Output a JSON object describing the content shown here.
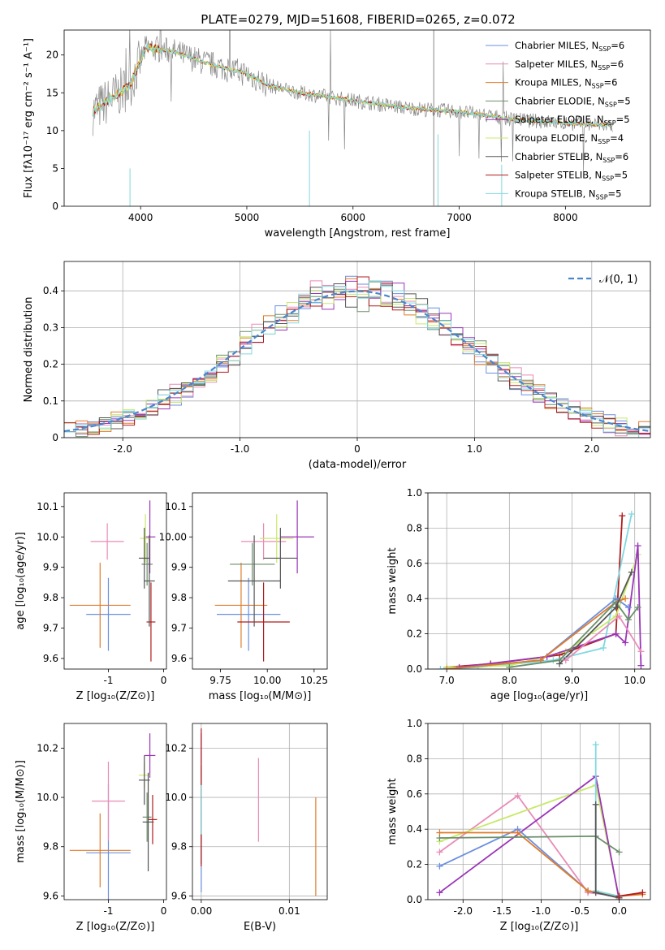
{
  "title": "PLATE=0279, MJD=51608, FIBERID=0265, z=0.072",
  "models": [
    {
      "name": "Chabrier MILES",
      "n": "6",
      "color": "#6b8fe0"
    },
    {
      "name": "Salpeter MILES",
      "n": "6",
      "color": "#e88bb6"
    },
    {
      "name": "Kroupa MILES",
      "n": "6",
      "color": "#e07b2a"
    },
    {
      "name": "Chabrier ELODIE",
      "n": "5",
      "color": "#6b8f6b"
    },
    {
      "name": "Salpeter ELODIE",
      "n": "5",
      "color": "#9a35b8"
    },
    {
      "name": "Kroupa ELODIE",
      "n": "4",
      "color": "#c8e96b"
    },
    {
      "name": "Chabrier STELIB",
      "n": "6",
      "color": "#555555"
    },
    {
      "name": "Salpeter STELIB",
      "n": "5",
      "color": "#b01c1c"
    },
    {
      "name": "Kroupa STELIB",
      "n": "5",
      "color": "#80d8e0"
    }
  ],
  "chart_data": [
    {
      "id": "spectrum",
      "type": "line",
      "xlabel": "wavelength [Angstrom, rest frame]",
      "ylabel": "Flux [fλ10⁻¹⁷ erg cm⁻² s⁻¹ A⁻¹]",
      "xlim": [
        3280,
        8800
      ],
      "ylim": [
        0,
        23.3
      ],
      "xticks": [
        4000,
        5000,
        6000,
        7000,
        8000
      ],
      "yticks": [
        0,
        5,
        10,
        15,
        20
      ],
      "continuum": {
        "x": [
          3550,
          3700,
          3900,
          4050,
          4300,
          4600,
          5000,
          5200,
          5500,
          6000,
          6500,
          7000,
          7500,
          8000,
          8400
        ],
        "y": [
          12.5,
          14,
          16,
          21,
          20.5,
          19,
          17.5,
          16,
          15,
          14,
          13,
          12.5,
          11.5,
          11,
          10.7
        ]
      }
    },
    {
      "id": "residuals",
      "type": "line",
      "xlabel": "(data-model)/error",
      "ylabel": "Normed distribution",
      "xlim": [
        -2.5,
        2.5
      ],
      "ylim": [
        0,
        0.48
      ],
      "xticks": [
        -2,
        -1,
        0,
        1,
        2
      ],
      "yticks": [
        0.0,
        0.1,
        0.2,
        0.3,
        0.4
      ],
      "legend": "𝒩(0, 1)"
    },
    {
      "id": "age-Z",
      "type": "scatter",
      "xlabel": "Z [log₁₀(Z/Z⊙)]",
      "ylabel": "age  [log₁₀(age/yr)]",
      "xlim": [
        -1.8,
        0.05
      ],
      "ylim": [
        9.565,
        10.145
      ],
      "xticks": [
        -1,
        0
      ],
      "yticks": [
        9.6,
        9.7,
        9.8,
        9.9,
        10.0,
        10.1
      ],
      "points": [
        {
          "x": -1.0,
          "y": 9.745,
          "xerr": 0.4,
          "yerr": 0.12,
          "c": 0
        },
        {
          "x": -1.02,
          "y": 9.985,
          "xerr": 0.3,
          "yerr": 0.06,
          "c": 1
        },
        {
          "x": -1.15,
          "y": 9.775,
          "xerr": 0.55,
          "yerr": 0.14,
          "c": 2
        },
        {
          "x": -0.3,
          "y": 9.91,
          "xerr": 0.1,
          "yerr": 0.07,
          "c": 3
        },
        {
          "x": -0.25,
          "y": 10.0,
          "xerr": 0.1,
          "yerr": 0.12,
          "c": 4
        },
        {
          "x": -0.33,
          "y": 9.995,
          "xerr": 0.1,
          "yerr": 0.08,
          "c": 5
        },
        {
          "x": -0.35,
          "y": 9.93,
          "xerr": 0.1,
          "yerr": 0.1,
          "c": 6
        },
        {
          "x": -0.23,
          "y": 9.72,
          "xerr": 0.08,
          "yerr": 0.13,
          "c": 7
        },
        {
          "x": -0.26,
          "y": 9.855,
          "xerr": 0.1,
          "yerr": 0.15,
          "c": 6
        }
      ]
    },
    {
      "id": "age-mass",
      "type": "scatter",
      "xlabel": "mass [log₁₀(M/M⊙)]",
      "ylabel": "",
      "xlim": [
        9.6,
        10.32
      ],
      "ylim": [
        9.565,
        10.145
      ],
      "xticks": [
        9.75,
        10.0,
        10.25
      ],
      "yticks": [
        9.6,
        9.7,
        9.8,
        9.9,
        10.0,
        10.1
      ],
      "points": [
        {
          "x": 9.9,
          "y": 9.745,
          "xerr": 0.17,
          "yerr": 0.12,
          "c": 0
        },
        {
          "x": 9.98,
          "y": 9.985,
          "xerr": 0.12,
          "yerr": 0.06,
          "c": 1
        },
        {
          "x": 9.86,
          "y": 9.775,
          "xerr": 0.14,
          "yerr": 0.14,
          "c": 2
        },
        {
          "x": 9.92,
          "y": 9.91,
          "xerr": 0.12,
          "yerr": 0.07,
          "c": 3
        },
        {
          "x": 10.16,
          "y": 10.0,
          "xerr": 0.09,
          "yerr": 0.12,
          "c": 4
        },
        {
          "x": 10.05,
          "y": 9.995,
          "xerr": 0.09,
          "yerr": 0.08,
          "c": 5
        },
        {
          "x": 10.07,
          "y": 9.93,
          "xerr": 0.09,
          "yerr": 0.1,
          "c": 6
        },
        {
          "x": 9.98,
          "y": 9.72,
          "xerr": 0.14,
          "yerr": 0.13,
          "c": 7
        },
        {
          "x": 9.93,
          "y": 9.855,
          "xerr": 0.14,
          "yerr": 0.15,
          "c": 6
        }
      ]
    },
    {
      "id": "weight-age",
      "type": "line",
      "xlabel": "age  [log₁₀(age/yr)]",
      "ylabel": "mass weight",
      "xlim": [
        6.7,
        10.25
      ],
      "ylim": [
        0,
        1.0
      ],
      "xticks": [
        7,
        8,
        9,
        10
      ],
      "yticks": [
        0.0,
        0.2,
        0.4,
        0.6,
        0.8,
        1.0
      ],
      "series": [
        {
          "c": 7,
          "x": [
            7.0,
            7.7,
            8.8,
            9.7,
            9.8
          ],
          "y": [
            0.01,
            0.03,
            0.08,
            0.2,
            0.87
          ]
        },
        {
          "c": 8,
          "x": [
            6.9,
            7.5,
            8.7,
            9.5,
            9.95
          ],
          "y": [
            0.0,
            0.01,
            0.05,
            0.12,
            0.88
          ]
        },
        {
          "c": 5,
          "x": [
            7.0,
            8.0,
            8.9,
            9.7,
            10.05
          ],
          "y": [
            0.01,
            0.02,
            0.1,
            0.3,
            0.65
          ]
        },
        {
          "c": 4,
          "x": [
            7.2,
            8.6,
            9.7,
            9.85,
            10.05,
            10.1
          ],
          "y": [
            0.01,
            0.07,
            0.2,
            0.15,
            0.7,
            0.02
          ]
        },
        {
          "c": 0,
          "x": [
            7.0,
            8.5,
            9.7,
            9.9
          ],
          "y": [
            0.0,
            0.05,
            0.4,
            0.35
          ]
        },
        {
          "c": 2,
          "x": [
            7.0,
            8.5,
            9.7,
            9.85
          ],
          "y": [
            0.0,
            0.05,
            0.38,
            0.4
          ]
        },
        {
          "c": 3,
          "x": [
            8.0,
            8.8,
            9.7,
            9.9,
            10.05
          ],
          "y": [
            0.01,
            0.05,
            0.38,
            0.28,
            0.35
          ]
        },
        {
          "c": 6,
          "x": [
            8.8,
            9.7,
            9.95
          ],
          "y": [
            0.03,
            0.35,
            0.55
          ]
        },
        {
          "c": 1,
          "x": [
            8.9,
            9.75,
            10.1
          ],
          "y": [
            0.05,
            0.3,
            0.1
          ]
        }
      ]
    },
    {
      "id": "mass-Z",
      "type": "scatter",
      "xlabel": "Z [log₁₀(Z/Z⊙)]",
      "ylabel": "mass [log₁₀(M/M⊙)]",
      "xlim": [
        -1.8,
        0.05
      ],
      "ylim": [
        9.585,
        10.3
      ],
      "xticks": [
        -1,
        0
      ],
      "yticks": [
        9.6,
        9.8,
        10.0,
        10.2
      ],
      "points": [
        {
          "x": -1.0,
          "y": 9.775,
          "xerr": 0.4,
          "yerr": 0.28,
          "c": 0
        },
        {
          "x": -1.0,
          "y": 9.985,
          "xerr": 0.3,
          "yerr": 0.16,
          "c": 1
        },
        {
          "x": -1.15,
          "y": 9.785,
          "xerr": 0.55,
          "yerr": 0.15,
          "c": 2
        },
        {
          "x": -0.3,
          "y": 9.92,
          "xerr": 0.08,
          "yerr": 0.1,
          "c": 3
        },
        {
          "x": -0.25,
          "y": 10.17,
          "xerr": 0.1,
          "yerr": 0.09,
          "c": 4
        },
        {
          "x": -0.35,
          "y": 10.09,
          "xerr": 0.1,
          "yerr": 0.05,
          "c": 5
        },
        {
          "x": -0.35,
          "y": 10.07,
          "xerr": 0.1,
          "yerr": 0.1,
          "c": 6
        },
        {
          "x": -0.2,
          "y": 9.91,
          "xerr": 0.08,
          "yerr": 0.1,
          "c": 7
        },
        {
          "x": -0.28,
          "y": 9.9,
          "xerr": 0.1,
          "yerr": 0.2,
          "c": 6
        }
      ]
    },
    {
      "id": "mass-EBV",
      "type": "scatter",
      "xlabel": "E(B-V)",
      "ylabel": "",
      "xlim": [
        -0.001,
        0.0143
      ],
      "ylim": [
        9.585,
        10.3
      ],
      "xticks": [
        0.0,
        0.01
      ],
      "yticks": [
        9.6,
        9.8,
        10.0,
        10.2
      ],
      "points": [
        {
          "x": 0.0,
          "y": 9.775,
          "xerr": 0,
          "yerr": 0.16,
          "c": 0
        },
        {
          "x": 0.0065,
          "y": 9.99,
          "xerr": 0,
          "yerr": 0.17,
          "c": 1
        },
        {
          "x": 0.013,
          "y": 9.8,
          "xerr": 0,
          "yerr": 0.2,
          "c": 2
        },
        {
          "x": 0.0,
          "y": 10.0,
          "xerr": 0,
          "yerr": 0.12,
          "c": 3
        },
        {
          "x": 0.0,
          "y": 10.17,
          "xerr": 0,
          "yerr": 0.09,
          "c": 4
        },
        {
          "x": 0.0,
          "y": 10.09,
          "xerr": 0,
          "yerr": 0.05,
          "c": 5
        },
        {
          "x": 0.0,
          "y": 9.93,
          "xerr": 0,
          "yerr": 0.2,
          "c": 6
        },
        {
          "x": 0.0,
          "y": 10.0,
          "xerr": 0,
          "yerr": 0.28,
          "c": 7
        },
        {
          "x": 0.0,
          "y": 9.95,
          "xerr": 0,
          "yerr": 0.1,
          "c": 8
        }
      ]
    },
    {
      "id": "weight-Z",
      "type": "line",
      "xlabel": "Z [log₁₀(Z/Z⊙)]",
      "ylabel": "mass weight",
      "xlim": [
        -2.45,
        0.4
      ],
      "ylim": [
        0,
        1.0
      ],
      "xticks": [
        -2.0,
        -1.5,
        -1.0,
        -0.5,
        0.0
      ],
      "yticks": [
        0.0,
        0.2,
        0.4,
        0.6,
        0.8,
        1.0
      ],
      "series": [
        {
          "c": 1,
          "x": [
            -2.3,
            -1.3,
            -0.4,
            0.0
          ],
          "y": [
            0.27,
            0.59,
            0.04,
            0.02
          ]
        },
        {
          "c": 5,
          "x": [
            -2.3,
            -0.3,
            0.0
          ],
          "y": [
            0.33,
            0.65,
            0.01
          ]
        },
        {
          "c": 4,
          "x": [
            -2.3,
            -0.3,
            0.0
          ],
          "y": [
            0.04,
            0.7,
            0.0
          ]
        },
        {
          "c": 0,
          "x": [
            -2.3,
            -1.3,
            -0.4,
            0.0
          ],
          "y": [
            0.19,
            0.4,
            0.05,
            0.01
          ]
        },
        {
          "c": 2,
          "x": [
            -2.3,
            -1.3,
            -0.4,
            0.0,
            0.3
          ],
          "y": [
            0.38,
            0.38,
            0.05,
            0.02,
            0.03
          ]
        },
        {
          "c": 3,
          "x": [
            -2.3,
            -0.3,
            0.0
          ],
          "y": [
            0.35,
            0.36,
            0.27
          ]
        },
        {
          "c": 8,
          "x": [
            -0.3,
            -0.3,
            0.0
          ],
          "y": [
            0.88,
            0.05,
            0.02
          ]
        },
        {
          "c": 6,
          "x": [
            -0.3,
            -0.3,
            0.0
          ],
          "y": [
            0.54,
            0.04,
            0.01
          ]
        },
        {
          "c": 7,
          "x": [
            0.0,
            0.3
          ],
          "y": [
            0.02,
            0.04
          ]
        }
      ]
    }
  ]
}
